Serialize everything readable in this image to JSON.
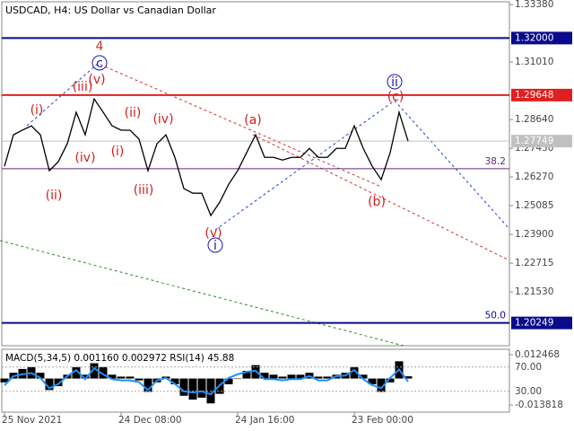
{
  "chart_data": {
    "type": "line",
    "title": "USDCAD, H4:  US Dollar vs Canadian Dollar",
    "categories": [
      "25 Nov 2021",
      null,
      null,
      null,
      null,
      null,
      null,
      null,
      null,
      null,
      null,
      null,
      null,
      "24 Dec 08:00",
      null,
      null,
      null,
      null,
      null,
      null,
      null,
      null,
      null,
      null,
      null,
      null,
      "24 Jan 16:00",
      null,
      null,
      null,
      null,
      null,
      null,
      null,
      null,
      null,
      null,
      null,
      null,
      "23 Feb 00:00",
      null,
      null,
      null,
      null,
      null,
      null
    ],
    "values": [
      1.2671,
      1.2801,
      1.282,
      1.2838,
      1.2801,
      1.2653,
      1.269,
      1.2764,
      1.2894,
      1.2801,
      1.2949,
      1.2894,
      1.2838,
      1.282,
      1.282,
      1.2783,
      1.2653,
      1.2764,
      1.2801,
      1.2708,
      1.2579,
      1.256,
      1.256,
      1.2468,
      1.2523,
      1.2597,
      1.2653,
      1.2727,
      1.2801,
      1.2708,
      1.2708,
      1.2697,
      1.2708,
      1.2708,
      1.2745,
      1.2708,
      1.2708,
      1.2745,
      1.2745,
      1.2838,
      1.2745,
      1.2671,
      1.2616,
      1.2727,
      1.2894,
      1.2775
    ],
    "color": "#000000",
    "ylim": [
      1.1931,
      1.3357
    ],
    "yticks": [
      {
        "value": 1.3338,
        "label": "1.33380"
      },
      {
        "value": 1.3101,
        "label": "1.31010"
      },
      {
        "value": 1.2864,
        "label": "1.28640"
      },
      {
        "value": 1.2745,
        "label": "1.27450"
      },
      {
        "value": 1.2627,
        "label": "1.26270"
      },
      {
        "value": 1.25085,
        "label": "1.25085"
      },
      {
        "value": 1.239,
        "label": "1.23900"
      },
      {
        "value": 1.22715,
        "label": "1.22715"
      },
      {
        "value": 1.2153,
        "label": "1.21530"
      }
    ],
    "levels": [
      {
        "value": 1.32,
        "label": "1.32000",
        "color": "#0a0a8c"
      },
      {
        "value": 1.29648,
        "label": "1.29648",
        "color": "#e02020"
      },
      {
        "value": 1.27749,
        "label": "1.27749",
        "color": "#c0c0c0"
      },
      {
        "value": 1.2661,
        "fib": "38.2",
        "color": "#5a2a82"
      },
      {
        "value": 1.20249,
        "label": "1.20249",
        "fib": "50.0",
        "color": "#0a0a8c"
      }
    ],
    "waves": [
      {
        "text": "4",
        "color": "#c0392b"
      },
      {
        "text": "c",
        "color": "#1a1aa6",
        "circled": true
      },
      {
        "text": "(v)",
        "color": "#d02020"
      },
      {
        "text": "(iii)",
        "color": "#d02020"
      },
      {
        "text": "(i)",
        "color": "#d02020"
      },
      {
        "text": "(ii)",
        "color": "#d02020"
      },
      {
        "text": "(iv)",
        "color": "#d02020"
      },
      {
        "text": "(ii)",
        "color": "#d02020"
      },
      {
        "text": "(i)",
        "color": "#d02020"
      },
      {
        "text": "(iv)",
        "color": "#d02020"
      },
      {
        "text": "(iii)",
        "color": "#d02020"
      },
      {
        "text": "(v)",
        "color": "#d02020"
      },
      {
        "text": "i",
        "color": "#1a1aa6",
        "circled": true
      },
      {
        "text": "(a)",
        "color": "#d02020"
      },
      {
        "text": "(b)",
        "color": "#d02020"
      },
      {
        "text": "(c)",
        "color": "#d02020"
      },
      {
        "text": "ii",
        "color": "#1a1aa6",
        "circled": true
      }
    ],
    "indicator": {
      "title": "MACD(5,34,5) 0.001160 0.002972 RSI(14) 45.88",
      "type": "bar",
      "color": "#000000",
      "values": [
        -0.002,
        0.003,
        0.005,
        0.006,
        0.003,
        -0.006,
        -0.004,
        0.002,
        0.006,
        0.002,
        0.008,
        0.006,
        0.002,
        0.001,
        0.001,
        -0.001,
        -0.007,
        -0.002,
        0.001,
        -0.003,
        -0.009,
        -0.011,
        -0.01,
        -0.013,
        -0.008,
        -0.003,
        0,
        0.004,
        0.007,
        0.003,
        0.002,
        0.001,
        0.002,
        0.002,
        0.003,
        0.001,
        0.001,
        0.002,
        0.003,
        0.006,
        0.002,
        -0.003,
        -0.007,
        -0.002,
        0.009,
        0.00116
      ],
      "ylim": [
        -0.013818,
        0.012468
      ],
      "yticks": [
        0.012468,
        -0.013818
      ],
      "rsi": {
        "color": "#1e90ff",
        "values": [
          40,
          55,
          58,
          60,
          52,
          35,
          42,
          55,
          65,
          50,
          68,
          58,
          50,
          48,
          48,
          45,
          32,
          48,
          52,
          42,
          30,
          28,
          30,
          25,
          40,
          52,
          58,
          62,
          64,
          50,
          50,
          48,
          50,
          50,
          55,
          48,
          48,
          55,
          56,
          65,
          50,
          40,
          35,
          52,
          66,
          45.88
        ],
        "ylim": [
          0,
          100
        ],
        "yticks": [
          {
            "value": 70,
            "label": "70.00"
          },
          {
            "value": 30,
            "label": "30.00"
          }
        ]
      }
    }
  }
}
